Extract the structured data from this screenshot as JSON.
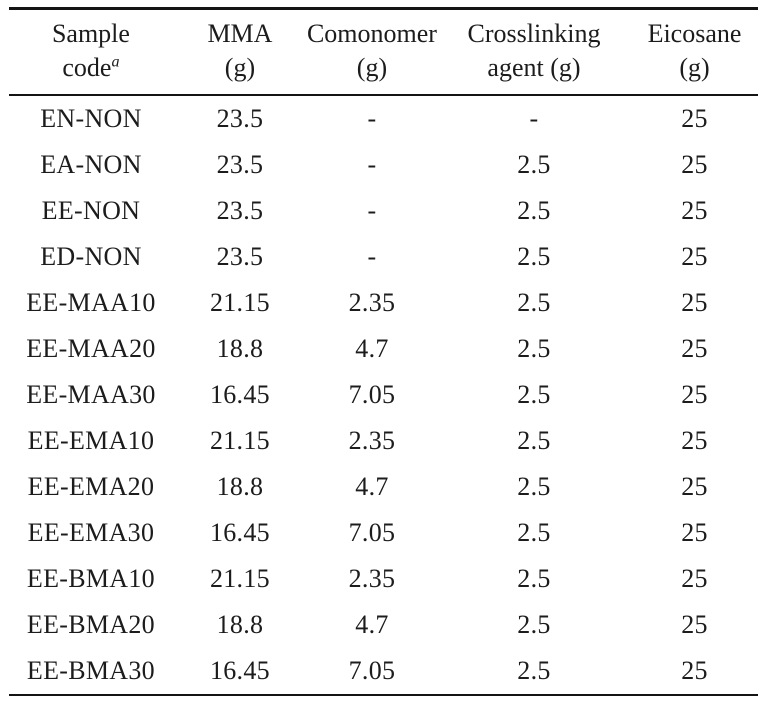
{
  "table": {
    "columns": [
      {
        "key": "sample_code",
        "line1": "Sample",
        "line2": "code",
        "superscript": "a"
      },
      {
        "key": "mma",
        "line1": "MMA",
        "line2": "(g)",
        "superscript": ""
      },
      {
        "key": "comonomer",
        "line1": "Comonomer",
        "line2": "(g)",
        "superscript": ""
      },
      {
        "key": "crosslinking_agent",
        "line1": "Crosslinking",
        "line2": "agent (g)",
        "superscript": ""
      },
      {
        "key": "eicosane",
        "line1": "Eicosane",
        "line2": "(g)",
        "superscript": ""
      }
    ],
    "rows": [
      {
        "sample_code": "EN-NON",
        "mma": "23.5",
        "comonomer": "-",
        "crosslinking_agent": "-",
        "eicosane": "25"
      },
      {
        "sample_code": "EA-NON",
        "mma": "23.5",
        "comonomer": "-",
        "crosslinking_agent": "2.5",
        "eicosane": "25"
      },
      {
        "sample_code": "EE-NON",
        "mma": "23.5",
        "comonomer": "-",
        "crosslinking_agent": "2.5",
        "eicosane": "25"
      },
      {
        "sample_code": "ED-NON",
        "mma": "23.5",
        "comonomer": "-",
        "crosslinking_agent": "2.5",
        "eicosane": "25"
      },
      {
        "sample_code": "EE-MAA10",
        "mma": "21.15",
        "comonomer": "2.35",
        "crosslinking_agent": "2.5",
        "eicosane": "25"
      },
      {
        "sample_code": "EE-MAA20",
        "mma": "18.8",
        "comonomer": "4.7",
        "crosslinking_agent": "2.5",
        "eicosane": "25"
      },
      {
        "sample_code": "EE-MAA30",
        "mma": "16.45",
        "comonomer": "7.05",
        "crosslinking_agent": "2.5",
        "eicosane": "25"
      },
      {
        "sample_code": "EE-EMA10",
        "mma": "21.15",
        "comonomer": "2.35",
        "crosslinking_agent": "2.5",
        "eicosane": "25"
      },
      {
        "sample_code": "EE-EMA20",
        "mma": "18.8",
        "comonomer": "4.7",
        "crosslinking_agent": "2.5",
        "eicosane": "25"
      },
      {
        "sample_code": "EE-EMA30",
        "mma": "16.45",
        "comonomer": "7.05",
        "crosslinking_agent": "2.5",
        "eicosane": "25"
      },
      {
        "sample_code": "EE-BMA10",
        "mma": "21.15",
        "comonomer": "2.35",
        "crosslinking_agent": "2.5",
        "eicosane": "25"
      },
      {
        "sample_code": "EE-BMA20",
        "mma": "18.8",
        "comonomer": "4.7",
        "crosslinking_agent": "2.5",
        "eicosane": "25"
      },
      {
        "sample_code": "EE-BMA30",
        "mma": "16.45",
        "comonomer": "7.05",
        "crosslinking_agent": "2.5",
        "eicosane": "25"
      }
    ]
  },
  "colors": {
    "text": "#1c1c1c",
    "rule": "#141414",
    "background": "#ffffff"
  }
}
